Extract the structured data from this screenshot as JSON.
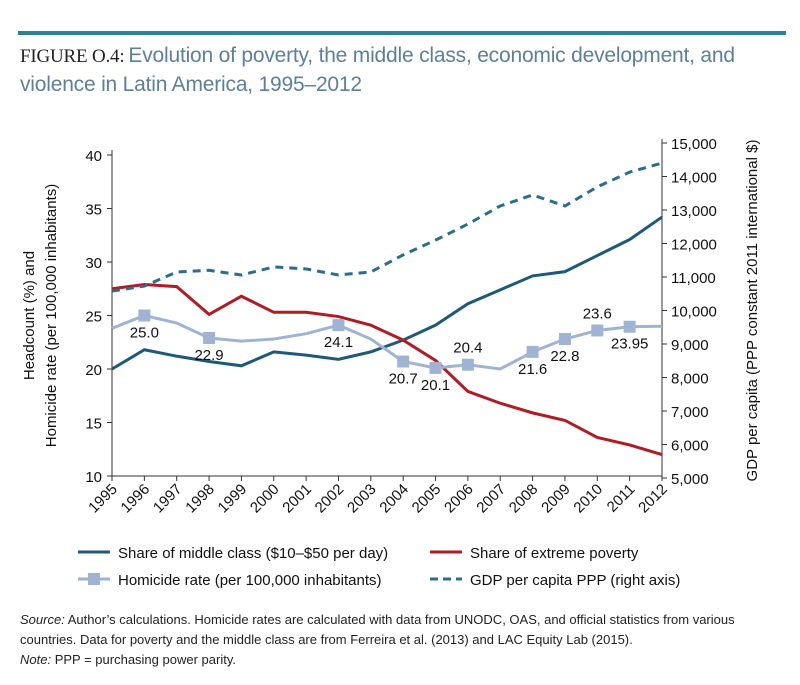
{
  "chart_data": {
    "type": "line",
    "figure_label": "FIGURE O.4:",
    "title": "Evolution of poverty, the middle class, economic development, and violence in Latin America, 1995–2012",
    "categories": [
      "1995",
      "1996",
      "1997",
      "1998",
      "1999",
      "2000",
      "2001",
      "2002",
      "2003",
      "2004",
      "2005",
      "2006",
      "2007",
      "2008",
      "2009",
      "2010",
      "2011",
      "2012"
    ],
    "ylabel": [
      "Headcount (%) and",
      "Homicide rate (per 100,000 inhabitants)"
    ],
    "y2label": "GDP per capita (PPP constant 2011 international $)",
    "ylim": [
      10,
      40
    ],
    "yticks": [
      10,
      15,
      20,
      25,
      30,
      35,
      40
    ],
    "y2lim": [
      5000,
      15000
    ],
    "y2ticks": [
      {
        "value": 5000,
        "label": "5,000"
      },
      {
        "value": 6000,
        "label": "6,000"
      },
      {
        "value": 7000,
        "label": "7,000"
      },
      {
        "value": 8000,
        "label": "8,000"
      },
      {
        "value": 9000,
        "label": "9,000"
      },
      {
        "value": 10000,
        "label": "10,000"
      },
      {
        "value": 11000,
        "label": "11,000"
      },
      {
        "value": 12000,
        "label": "12,000"
      },
      {
        "value": 13000,
        "label": "13,000"
      },
      {
        "value": 14000,
        "label": "14,000"
      },
      {
        "value": 15000,
        "label": "15,000"
      }
    ],
    "series": [
      {
        "name": "Share of middle class ($10–$50 per day)",
        "color": "#1d5a78",
        "values": [
          20.0,
          21.8,
          21.2,
          20.7,
          20.3,
          21.6,
          21.3,
          20.9,
          21.6,
          22.7,
          24.1,
          26.1,
          27.4,
          28.7,
          29.1,
          30.6,
          32.1,
          34.2
        ]
      },
      {
        "name": "Share of extreme poverty",
        "color": "#b01c24",
        "values": [
          27.5,
          27.9,
          27.7,
          25.1,
          26.8,
          25.3,
          25.3,
          24.9,
          24.1,
          22.7,
          20.8,
          17.9,
          16.8,
          15.9,
          15.2,
          13.6,
          12.9,
          12.0
        ]
      },
      {
        "name": "Homicide rate (per 100,000 inhabitants)",
        "color": "#9fb3d3",
        "marker": "square",
        "values": [
          23.8,
          25.0,
          24.3,
          22.9,
          22.6,
          22.8,
          23.3,
          24.1,
          22.8,
          20.7,
          20.1,
          20.4,
          20.0,
          21.6,
          22.8,
          23.6,
          23.95,
          24.0
        ],
        "value_labels": [
          null,
          "25.0",
          null,
          "22.9",
          null,
          null,
          null,
          "24.1",
          null,
          "20.7",
          "20.1",
          "20.4",
          null,
          "21.6",
          "22.8",
          "23.6",
          "23.95",
          null
        ]
      },
      {
        "name": "GDP per capita PPP (right axis)",
        "color": "#2a6d91",
        "dash": true,
        "axis": "y2",
        "values": [
          10580,
          10730,
          11150,
          11200,
          11060,
          11300,
          11240,
          11060,
          11150,
          11660,
          12100,
          12580,
          13120,
          13450,
          13120,
          13690,
          14130,
          14400
        ]
      }
    ],
    "source_label": "Source:",
    "source_text": "Author’s calculations. Homicide rates are calculated with data from UNODC, OAS, and official statistics from various countries. Data for poverty and the middle class are from Ferreira et al. (2013) and LAC Equity Lab (2015).",
    "note_label": "Note:",
    "note_text": "PPP = purchasing power parity."
  }
}
